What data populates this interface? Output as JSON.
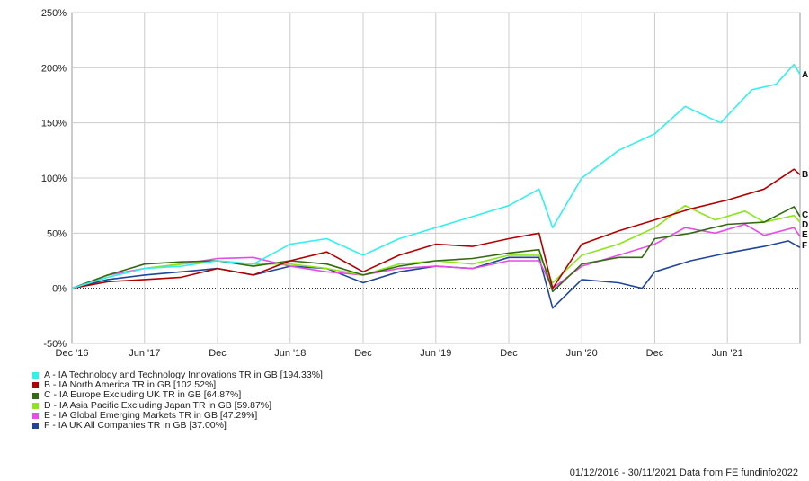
{
  "chart_data": {
    "type": "line",
    "y_tick_labels": [
      "250%",
      "200%",
      "150%",
      "100%",
      "50%",
      "0%",
      "-50%"
    ],
    "ylim": [
      -50,
      250
    ],
    "x_tick_labels": [
      "Dec '16",
      "Jun '17",
      "Dec",
      "Jun '18",
      "Dec",
      "Jun '19",
      "Dec",
      "Jun '20",
      "Dec",
      "Jun '21"
    ],
    "xlim": [
      "2016-12-01",
      "2021-11-30"
    ],
    "grid": true,
    "legend_position": "bottom-left",
    "series": [
      {
        "key": "A",
        "name": "A - IA Technology and Technology Innovations TR in GB [194.33%]",
        "color": "#33f0f0",
        "points": [
          [
            "2016-12-01",
            0
          ],
          [
            "2017-03-01",
            10
          ],
          [
            "2017-06-01",
            18
          ],
          [
            "2017-09-01",
            20
          ],
          [
            "2017-12-01",
            25
          ],
          [
            "2018-03-01",
            22
          ],
          [
            "2018-06-01",
            40
          ],
          [
            "2018-09-01",
            45
          ],
          [
            "2018-12-01",
            30
          ],
          [
            "2019-03-01",
            45
          ],
          [
            "2019-06-01",
            55
          ],
          [
            "2019-09-01",
            65
          ],
          [
            "2019-12-01",
            75
          ],
          [
            "2020-02-15",
            90
          ],
          [
            "2020-03-20",
            55
          ],
          [
            "2020-06-01",
            100
          ],
          [
            "2020-09-01",
            125
          ],
          [
            "2020-12-01",
            140
          ],
          [
            "2021-02-15",
            165
          ],
          [
            "2021-05-15",
            150
          ],
          [
            "2021-08-01",
            180
          ],
          [
            "2021-10-01",
            185
          ],
          [
            "2021-11-15",
            203
          ],
          [
            "2021-11-30",
            194
          ]
        ]
      },
      {
        "key": "B",
        "name": "B - IA North America TR in GB [102.52%]",
        "color": "#b30000",
        "points": [
          [
            "2016-12-01",
            0
          ],
          [
            "2017-03-01",
            6
          ],
          [
            "2017-06-01",
            8
          ],
          [
            "2017-09-01",
            10
          ],
          [
            "2017-12-01",
            18
          ],
          [
            "2018-03-01",
            12
          ],
          [
            "2018-06-01",
            25
          ],
          [
            "2018-09-01",
            33
          ],
          [
            "2018-12-01",
            15
          ],
          [
            "2019-03-01",
            30
          ],
          [
            "2019-06-01",
            40
          ],
          [
            "2019-09-01",
            38
          ],
          [
            "2019-12-01",
            45
          ],
          [
            "2020-02-15",
            50
          ],
          [
            "2020-03-20",
            0
          ],
          [
            "2020-06-01",
            40
          ],
          [
            "2020-09-01",
            52
          ],
          [
            "2020-12-01",
            62
          ],
          [
            "2021-03-01",
            72
          ],
          [
            "2021-06-01",
            80
          ],
          [
            "2021-09-01",
            90
          ],
          [
            "2021-11-15",
            108
          ],
          [
            "2021-11-30",
            103
          ]
        ]
      },
      {
        "key": "C",
        "name": "C - IA Europe Excluding UK TR in GB [64.87%]",
        "color": "#336b12",
        "points": [
          [
            "2016-12-01",
            0
          ],
          [
            "2017-03-01",
            12
          ],
          [
            "2017-06-01",
            22
          ],
          [
            "2017-09-01",
            24
          ],
          [
            "2017-12-01",
            25
          ],
          [
            "2018-03-01",
            20
          ],
          [
            "2018-06-01",
            25
          ],
          [
            "2018-09-01",
            22
          ],
          [
            "2018-12-01",
            12
          ],
          [
            "2019-03-01",
            20
          ],
          [
            "2019-06-01",
            25
          ],
          [
            "2019-09-01",
            27
          ],
          [
            "2019-12-01",
            32
          ],
          [
            "2020-02-15",
            35
          ],
          [
            "2020-03-20",
            -3
          ],
          [
            "2020-06-01",
            22
          ],
          [
            "2020-09-01",
            28
          ],
          [
            "2020-10-30",
            28
          ],
          [
            "2020-12-01",
            45
          ],
          [
            "2021-03-01",
            50
          ],
          [
            "2021-06-01",
            58
          ],
          [
            "2021-09-01",
            60
          ],
          [
            "2021-11-15",
            74
          ],
          [
            "2021-11-30",
            65
          ]
        ]
      },
      {
        "key": "D",
        "name": "D - IA Asia Pacific Excluding Japan TR in GB [59.87%]",
        "color": "#8ce61a",
        "points": [
          [
            "2016-12-01",
            0
          ],
          [
            "2017-03-01",
            10
          ],
          [
            "2017-06-01",
            18
          ],
          [
            "2017-09-01",
            22
          ],
          [
            "2017-12-01",
            25
          ],
          [
            "2018-03-01",
            22
          ],
          [
            "2018-06-01",
            22
          ],
          [
            "2018-09-01",
            18
          ],
          [
            "2018-12-01",
            12
          ],
          [
            "2019-03-01",
            22
          ],
          [
            "2019-06-01",
            25
          ],
          [
            "2019-09-01",
            22
          ],
          [
            "2019-12-01",
            30
          ],
          [
            "2020-02-15",
            30
          ],
          [
            "2020-03-20",
            5
          ],
          [
            "2020-06-01",
            30
          ],
          [
            "2020-09-01",
            40
          ],
          [
            "2020-12-01",
            55
          ],
          [
            "2021-02-15",
            75
          ],
          [
            "2021-05-01",
            62
          ],
          [
            "2021-07-15",
            70
          ],
          [
            "2021-09-01",
            60
          ],
          [
            "2021-11-15",
            66
          ],
          [
            "2021-11-30",
            60
          ]
        ]
      },
      {
        "key": "E",
        "name": "E - IA Global Emerging Markets TR in GB [47.29%]",
        "color": "#e64ce6",
        "points": [
          [
            "2016-12-01",
            0
          ],
          [
            "2017-03-01",
            12
          ],
          [
            "2017-06-01",
            18
          ],
          [
            "2017-09-01",
            22
          ],
          [
            "2017-12-01",
            27
          ],
          [
            "2018-03-01",
            28
          ],
          [
            "2018-06-01",
            20
          ],
          [
            "2018-09-01",
            15
          ],
          [
            "2018-12-01",
            12
          ],
          [
            "2019-03-01",
            18
          ],
          [
            "2019-06-01",
            20
          ],
          [
            "2019-09-01",
            18
          ],
          [
            "2019-12-01",
            25
          ],
          [
            "2020-02-15",
            25
          ],
          [
            "2020-03-20",
            0
          ],
          [
            "2020-06-01",
            20
          ],
          [
            "2020-09-01",
            30
          ],
          [
            "2020-12-01",
            40
          ],
          [
            "2021-02-15",
            55
          ],
          [
            "2021-05-01",
            50
          ],
          [
            "2021-07-15",
            58
          ],
          [
            "2021-09-01",
            48
          ],
          [
            "2021-11-15",
            55
          ],
          [
            "2021-11-30",
            47
          ]
        ]
      },
      {
        "key": "F",
        "name": "F - IA UK All Companies TR in GB [37.00%]",
        "color": "#1f4699",
        "points": [
          [
            "2016-12-01",
            0
          ],
          [
            "2017-03-01",
            8
          ],
          [
            "2017-06-01",
            12
          ],
          [
            "2017-09-01",
            15
          ],
          [
            "2017-12-01",
            18
          ],
          [
            "2018-03-01",
            12
          ],
          [
            "2018-06-01",
            20
          ],
          [
            "2018-09-01",
            18
          ],
          [
            "2018-12-01",
            5
          ],
          [
            "2019-03-01",
            15
          ],
          [
            "2019-06-01",
            20
          ],
          [
            "2019-09-01",
            18
          ],
          [
            "2019-12-01",
            28
          ],
          [
            "2020-02-15",
            28
          ],
          [
            "2020-03-20",
            -18
          ],
          [
            "2020-06-01",
            8
          ],
          [
            "2020-09-01",
            5
          ],
          [
            "2020-10-30",
            0
          ],
          [
            "2020-12-01",
            15
          ],
          [
            "2021-03-01",
            25
          ],
          [
            "2021-06-01",
            32
          ],
          [
            "2021-09-01",
            38
          ],
          [
            "2021-11-01",
            43
          ],
          [
            "2021-11-30",
            37
          ]
        ]
      }
    ]
  },
  "footer": "01/12/2016 - 30/11/2021 Data from FE fundinfo2022"
}
